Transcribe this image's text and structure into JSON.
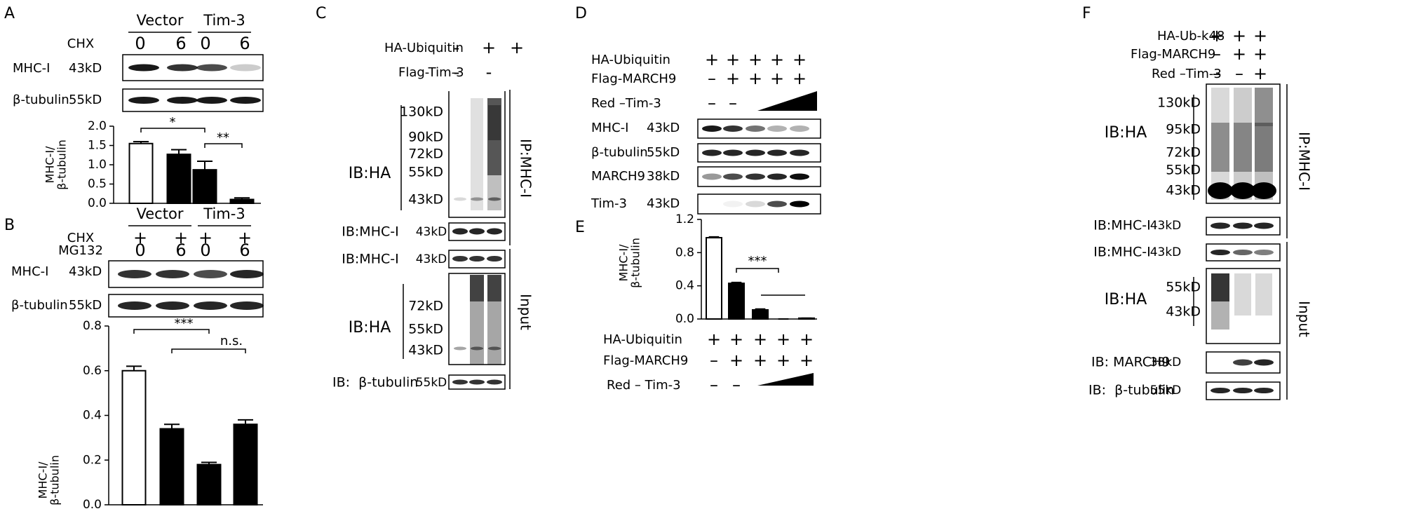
{
  "panels": [
    {
      "label": "A",
      "groups": [
        "Vector",
        "Tim-3"
      ],
      "conditions": [
        {
          "name": "CHX",
          "values": [
            "0",
            "6",
            "0",
            "6"
          ]
        }
      ],
      "blots": [
        {
          "name": "MHC-I",
          "size": "43kD"
        },
        {
          "name": "β-tubulin",
          "size": "55kD"
        }
      ],
      "chart": {
        "type": "bar",
        "ylabel": [
          "MHC-I/",
          "β-tubulin"
        ],
        "values": [
          1.55,
          1.27,
          0.87,
          0.1
        ],
        "errors": [
          0.05,
          0.12,
          0.22,
          0.04
        ],
        "colors": [
          "#ffffff",
          "#000000",
          "#000000",
          "#000000"
        ],
        "ylim": [
          0,
          2.0
        ],
        "yticks": [
          {
            "value": 0,
            "label": "0.0"
          },
          0.5,
          {
            "value": 1,
            "label": "1.0"
          },
          1.5,
          {
            "value": 2,
            "label": "2.0"
          }
        ],
        "annotations": [
          "*",
          "**"
        ]
      }
    },
    {
      "label": "B",
      "groups": [
        "Vector",
        "Tim-3"
      ],
      "conditions": [
        {
          "name": "CHX",
          "values": [
            "+",
            "+",
            "+",
            "+"
          ]
        },
        {
          "name": "MG132",
          "values": [
            "0",
            "6",
            "0",
            "6"
          ]
        }
      ],
      "blots": [
        {
          "name": "MHC-I",
          "size": "43kD"
        },
        {
          "name": "β-tubulin",
          "size": "55kD"
        }
      ],
      "chart": {
        "type": "bar",
        "ylabel": [
          "MHC-I/",
          "β-tubulin"
        ],
        "values": [
          0.6,
          0.34,
          0.18,
          0.36
        ],
        "errors": [
          0.02,
          0.02,
          0.01,
          0.02
        ],
        "colors": [
          "#ffffff",
          "#000000",
          "#000000",
          "#000000"
        ],
        "ylim": [
          0,
          0.8
        ],
        "yticks": [
          {
            "value": 0,
            "label": "0.0"
          },
          0.2,
          0.4,
          0.6,
          0.8
        ],
        "annotations": [
          "***",
          "n.s."
        ]
      }
    },
    {
      "label": "C",
      "conditions": [
        {
          "name": "HA-Ubiquitin",
          "values": [
            "-",
            "+",
            "+"
          ]
        },
        {
          "name": "Flag-Tim-3",
          "values": [
            "-",
            "-"
          ]
        }
      ],
      "ip_label": "IP:MHC-I",
      "input_label": "Input",
      "ip_blots": [
        {
          "name": "IB:HA",
          "sizes": [
            "130kD",
            "90kD",
            "72kD",
            "55kD",
            "43kD"
          ]
        },
        {
          "name": "IB:MHC-I",
          "sizes": [
            "43kD"
          ]
        }
      ],
      "input_blots": [
        {
          "name": "IB:MHC-I",
          "sizes": [
            "43kD"
          ]
        },
        {
          "name": "IB:HA",
          "sizes": [
            "72kD",
            "55kD",
            "43kD"
          ]
        },
        {
          "name": "IB:  β-tubulin",
          "sizes": [
            "55kD"
          ]
        }
      ]
    },
    {
      "label": "D",
      "conditions": [
        {
          "name": "HA-Ubiquitin",
          "values": [
            "+",
            "+",
            "+",
            "+",
            "+"
          ]
        },
        {
          "name": "Flag-MARCH9",
          "values": [
            "–",
            "+",
            "+",
            "+",
            "+"
          ]
        },
        {
          "name": "Red –Tim-3",
          "values": [
            "–",
            "–"
          ]
        }
      ],
      "blots": [
        {
          "name": "MHC-I",
          "size": "43kD"
        },
        {
          "name": "β-tubulin",
          "size": "55kD"
        },
        {
          "name": "MARCH9",
          "size": "38kD"
        },
        {
          "name": "Tim-3",
          "size": "43kD"
        }
      ]
    },
    {
      "label": "E",
      "chart": {
        "type": "bar",
        "ylabel": [
          "MHC-I/",
          "β-tubulin"
        ],
        "values": [
          0.98,
          0.43,
          0.11,
          0.0,
          0.01
        ],
        "errors": [
          0.01,
          0.01,
          0.01,
          0.0,
          0.0
        ],
        "colors": [
          "#ffffff",
          "#000000",
          "#000000",
          "#000000",
          "#000000"
        ],
        "ylim": [
          0,
          1.2
        ],
        "yticks": [
          {
            "value": 0,
            "label": "0.0"
          },
          0.4,
          0.8,
          1.2
        ],
        "annotations": [
          "***"
        ]
      },
      "conditions": [
        {
          "name": "HA-Ubiquitin",
          "values": [
            "+",
            "+",
            "+",
            "+",
            "+"
          ]
        },
        {
          "name": "Flag-MARCH9",
          "values": [
            "–",
            "+",
            "+",
            "+",
            "+"
          ]
        },
        {
          "name": "Red – Tim-3",
          "values": [
            "–",
            "–"
          ]
        }
      ]
    },
    {
      "label": "F",
      "conditions": [
        {
          "name": "HA-Ub-k48",
          "values": [
            "+",
            "+",
            "+"
          ]
        },
        {
          "name": "Flag-MARCH9",
          "values": [
            "–",
            "+",
            "+"
          ]
        },
        {
          "name": "Red –Tim-3",
          "values": [
            "–",
            "–",
            "+"
          ]
        }
      ],
      "ip_label": "IP:MHC-I",
      "input_label": "Input",
      "ip_blots": [
        {
          "name": "IB:HA",
          "sizes": [
            "130kD",
            "95kD",
            "72kD",
            "55kD",
            "43kD"
          ]
        },
        {
          "name": "IB:MHC-I",
          "sizes": [
            "43kD"
          ]
        }
      ],
      "input_blots": [
        {
          "name": "IB:MHC-I",
          "sizes": [
            "43kD"
          ]
        },
        {
          "name": "IB:HA",
          "sizes": [
            "55kD",
            "43kD"
          ]
        },
        {
          "name": "IB: MARCH9",
          "sizes": [
            "38kD"
          ]
        },
        {
          "name": "IB:  β-tubulin",
          "sizes": [
            "55kD"
          ]
        }
      ]
    }
  ]
}
